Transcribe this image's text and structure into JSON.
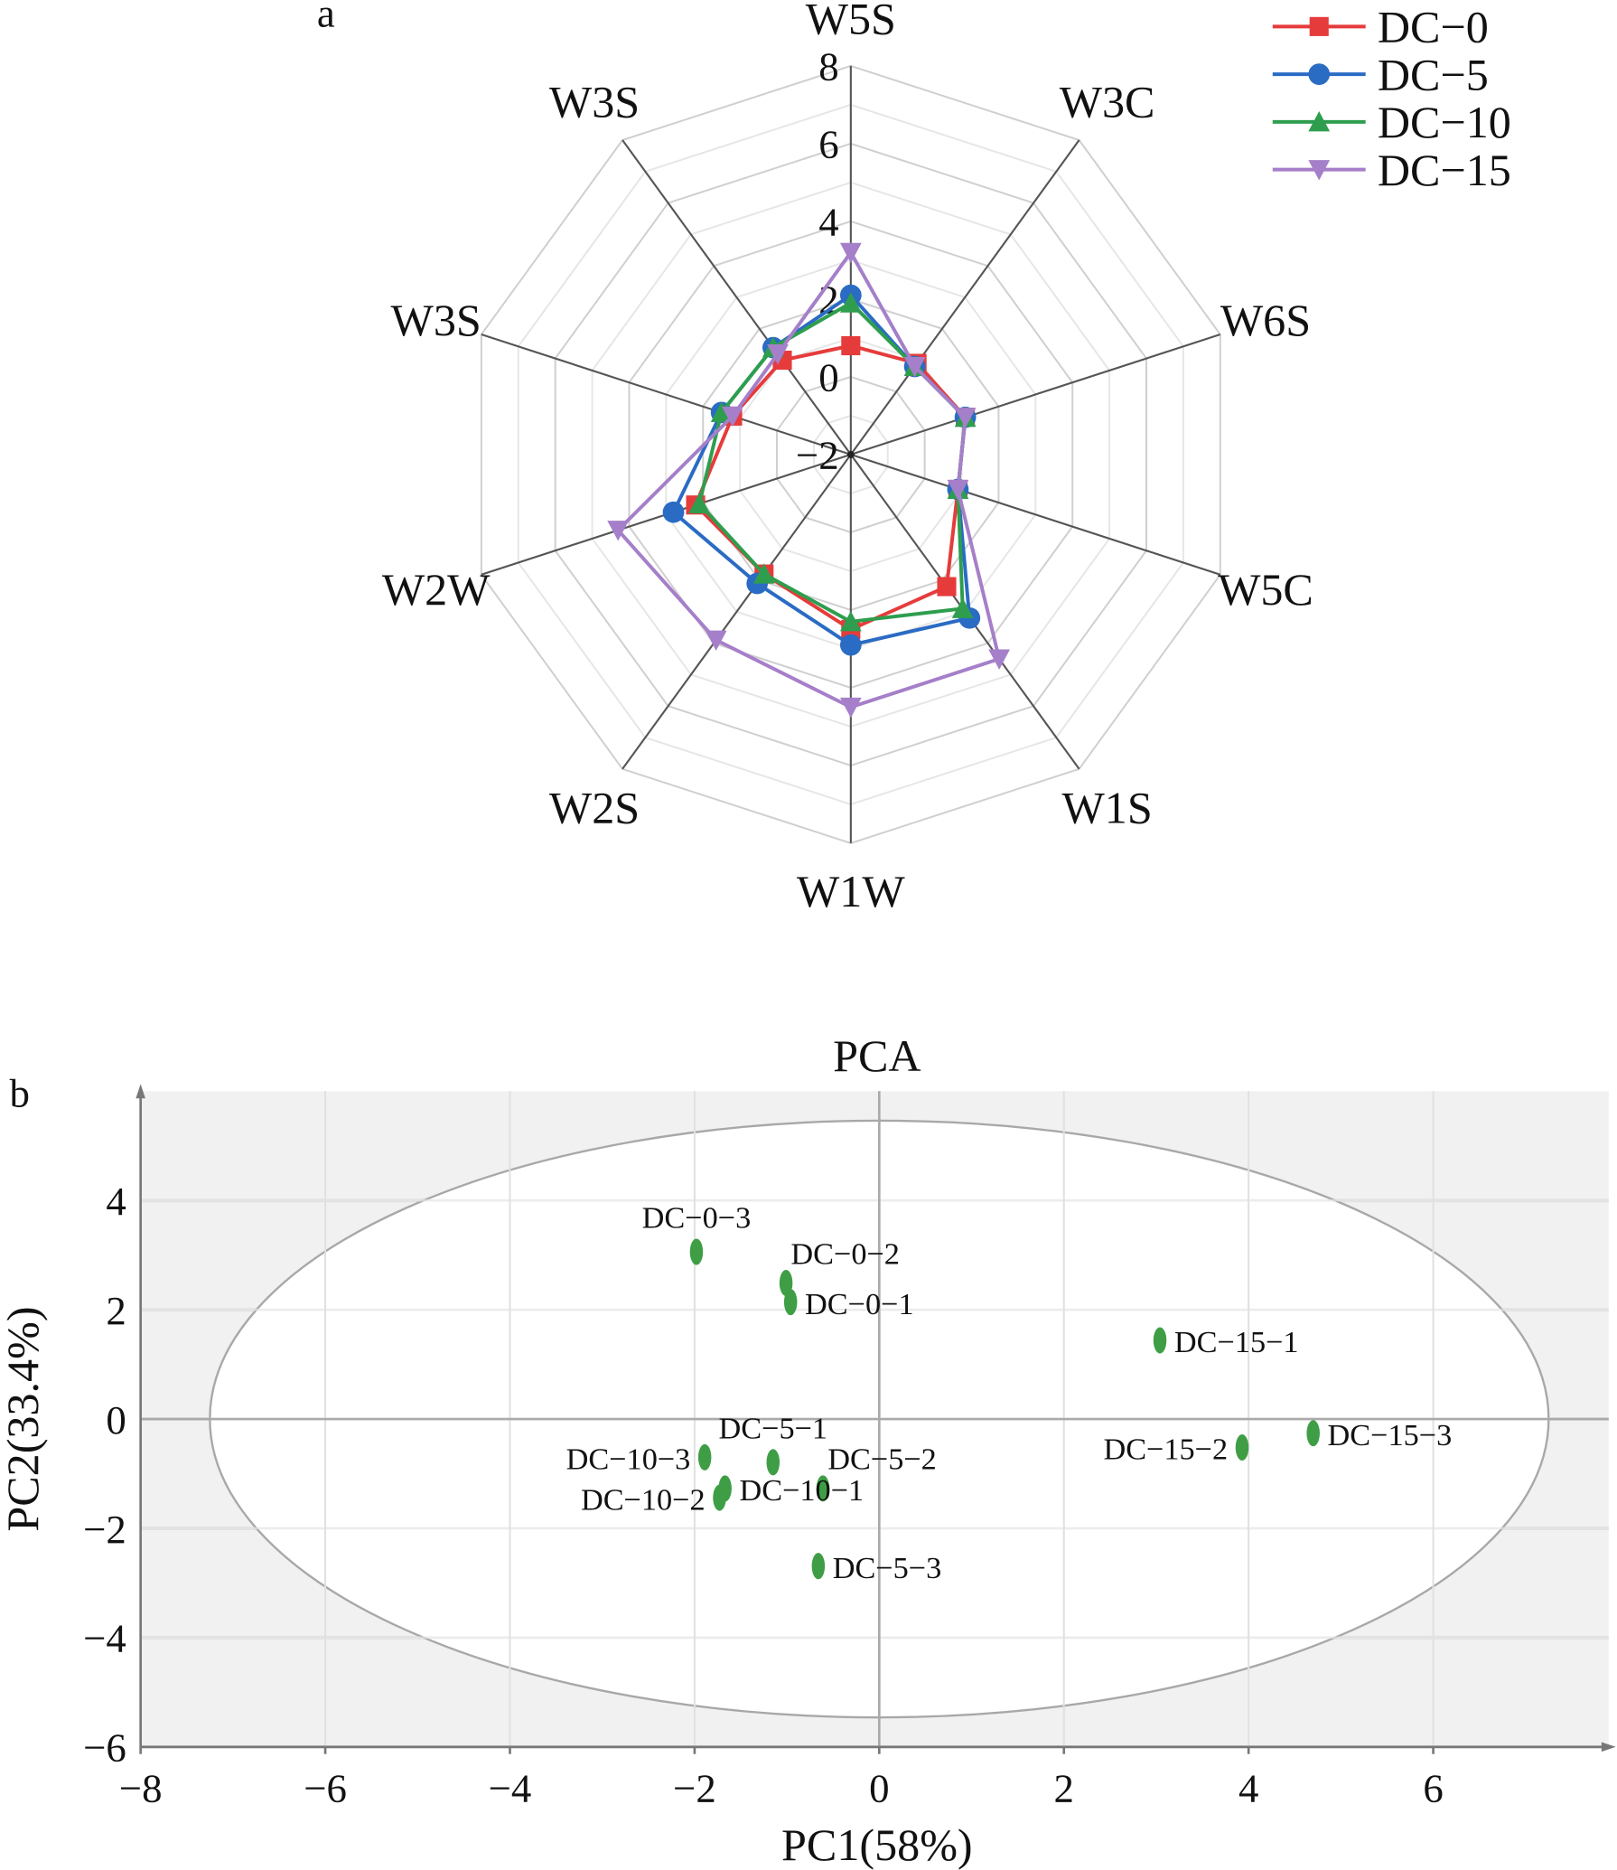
{
  "chart_data": [
    {
      "type": "radar",
      "panel_label": "a",
      "axes": [
        "W5S",
        "W3C",
        "W6S",
        "W5C",
        "W1S",
        "W1W",
        "W2S",
        "W2W",
        "W3S",
        "W3S"
      ],
      "range": [
        -2,
        8
      ],
      "ticks": [
        "8",
        "6",
        "4",
        "2",
        "0",
        "−2"
      ],
      "tick_values": [
        8,
        6,
        4,
        2,
        0,
        -2
      ],
      "legend_position": "top-right",
      "series": [
        {
          "name": "DC−0",
          "color": "#e63b3b",
          "marker": "square",
          "values": [
            0.8,
            0.9,
            1.1,
            0.9,
            2.2,
            2.5,
            1.8,
            2.2,
            1.2,
            1.0
          ]
        },
        {
          "name": "DC−5",
          "color": "#2a6bc4",
          "marker": "circle",
          "values": [
            2.1,
            0.8,
            1.1,
            0.9,
            3.2,
            2.9,
            2.1,
            2.8,
            1.5,
            1.4
          ]
        },
        {
          "name": "DC−10",
          "color": "#2e9e4e",
          "marker": "triangle-up",
          "values": [
            1.9,
            0.8,
            1.1,
            0.9,
            2.9,
            2.3,
            1.8,
            2.1,
            1.5,
            1.4
          ]
        },
        {
          "name": "DC−15",
          "color": "#a57fc9",
          "marker": "triangle-down",
          "values": [
            3.2,
            0.8,
            1.1,
            0.9,
            4.5,
            4.5,
            3.9,
            4.3,
            1.2,
            1.2
          ]
        }
      ]
    },
    {
      "type": "scatter",
      "panel_label": "b",
      "title": "PCA",
      "xlabel": "PC1(58%)",
      "ylabel": "PC2(33.4%)",
      "xlim": [
        -8,
        7.9
      ],
      "ylim": [
        -6,
        6
      ],
      "xticks": [
        -8,
        -6,
        -4,
        -2,
        0,
        2,
        4,
        6
      ],
      "xtick_labels": [
        "−8",
        "−6",
        "−4",
        "−2",
        "0",
        "2",
        "4",
        "6"
      ],
      "yticks": [
        4,
        2,
        0,
        -2,
        -4,
        -6
      ],
      "ytick_labels": [
        "4",
        "2",
        "0",
        "−2",
        "−4",
        "−6"
      ],
      "point_color": "#3f9e45",
      "confidence_ellipse": {
        "cx": 0,
        "cy": 0,
        "rx": 7.25,
        "ry": 5.46
      },
      "points": [
        {
          "label": "DC−0−3",
          "x": -1.98,
          "y": 3.06,
          "label_side": "above"
        },
        {
          "label": "DC−0−2",
          "x": -1.01,
          "y": 2.49,
          "label_side": "above-right"
        },
        {
          "label": "DC−0−1",
          "x": -0.96,
          "y": 2.14,
          "label_side": "right"
        },
        {
          "label": "DC−15−1",
          "x": 3.04,
          "y": 1.44,
          "label_side": "right"
        },
        {
          "label": "DC−15−3",
          "x": 4.7,
          "y": -0.26,
          "label_side": "right"
        },
        {
          "label": "DC−15−2",
          "x": 3.93,
          "y": -0.52,
          "label_side": "left"
        },
        {
          "label": "DC−5−1",
          "x": -1.15,
          "y": -0.79,
          "label_side": "above"
        },
        {
          "label": "DC−10−3",
          "x": -1.89,
          "y": -0.7,
          "label_side": "left"
        },
        {
          "label": "DC−5−2",
          "x": -0.61,
          "y": -1.27,
          "label_side": "above-right"
        },
        {
          "label": "DC−10−1",
          "x": -1.67,
          "y": -1.27,
          "label_side": "right"
        },
        {
          "label": "DC−10−2",
          "x": -1.73,
          "y": -1.44,
          "label_side": "left"
        },
        {
          "label": "DC−5−3",
          "x": -0.66,
          "y": -2.69,
          "label_side": "right"
        }
      ]
    }
  ]
}
